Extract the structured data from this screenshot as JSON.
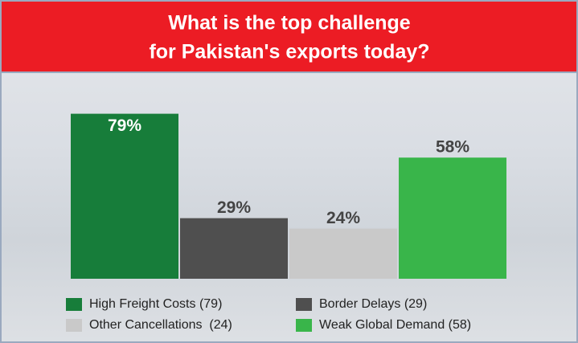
{
  "chart_data": {
    "type": "bar",
    "title": [
      "What is the top challenge",
      "for Pakistan's exports today?"
    ],
    "categories": [
      "High Freight Costs (79)",
      "Border Delays (29)",
      "Other Cancellations  (24)",
      "Weak Global Demand (58)"
    ],
    "values": [
      79,
      29,
      24,
      58
    ],
    "value_labels": [
      "79%",
      "29%",
      "24%",
      "58%"
    ],
    "colors": [
      "#177d3a",
      "#4f4f4f",
      "#c9c9c9",
      "#39b54a"
    ]
  }
}
